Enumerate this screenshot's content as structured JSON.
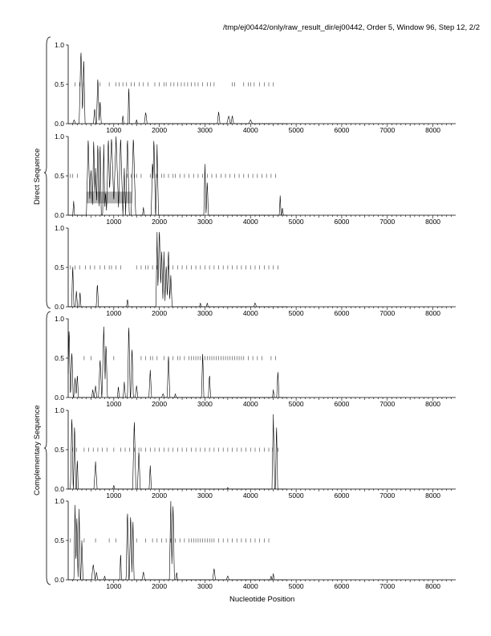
{
  "header": "/tmp/ej00442/only/raw_result_dir/ej00442, Order 5, Window 96, Step 12, 2/2",
  "group_labels": {
    "direct": "Direct Sequence",
    "complementary": "Complementary Sequence"
  },
  "chart_data": {
    "type": "line",
    "xlabel": "Nucleotide Position",
    "xlim": [
      0,
      8500
    ],
    "ylim": [
      0,
      1
    ],
    "x_ticks": [
      1000,
      2000,
      3000,
      4000,
      5000,
      6000,
      7000,
      8000
    ],
    "y_ticks": [
      "0.0",
      "0.5",
      "1.0"
    ],
    "threshold": 0.5,
    "panels": [
      {
        "group": "Direct Sequence",
        "frame": 1,
        "peaks": [
          [
            130,
            0.05,
            30
          ],
          [
            280,
            0.95,
            40
          ],
          [
            340,
            0.85,
            30
          ],
          [
            580,
            0.2,
            25
          ],
          [
            650,
            0.6,
            30
          ],
          [
            700,
            0.3,
            25
          ],
          [
            1200,
            0.1,
            20
          ],
          [
            1330,
            0.5,
            18
          ],
          [
            1500,
            0.05,
            20
          ],
          [
            1700,
            0.15,
            30
          ],
          [
            3300,
            0.15,
            30
          ],
          [
            3520,
            0.1,
            40
          ],
          [
            3600,
            0.1,
            30
          ],
          [
            4000,
            0.05,
            40
          ]
        ],
        "ticks": [
          150,
          250,
          330,
          700,
          900,
          1050,
          1120,
          1200,
          1280,
          1380,
          1450,
          1560,
          1650,
          1750,
          1900,
          2000,
          2100,
          2150,
          2250,
          2320,
          2400,
          2480,
          2550,
          2620,
          2700,
          2780,
          2850,
          2950,
          3050,
          3120,
          3200,
          3600,
          3650,
          3850,
          3950,
          4000,
          4080,
          4200,
          4300,
          4400,
          4500
        ]
      },
      {
        "group": "Direct Sequence",
        "frame": 2,
        "peaks": [
          [
            120,
            0.18,
            20
          ],
          [
            440,
            1.0,
            40
          ],
          [
            500,
            0.6,
            40
          ],
          [
            560,
            1.0,
            30
          ],
          [
            600,
            0.6,
            35
          ],
          [
            650,
            0.95,
            30
          ],
          [
            700,
            0.95,
            25
          ],
          [
            780,
            0.9,
            25
          ],
          [
            820,
            0.3,
            25
          ],
          [
            880,
            1.0,
            40
          ],
          [
            950,
            1.0,
            60
          ],
          [
            1050,
            1.0,
            60
          ],
          [
            1150,
            1.0,
            50
          ],
          [
            1230,
            0.6,
            30
          ],
          [
            1300,
            1.0,
            40
          ],
          [
            1430,
            1.0,
            50
          ],
          [
            1650,
            0.1,
            20
          ],
          [
            1850,
            0.7,
            30
          ],
          [
            1880,
            1.0,
            35
          ],
          [
            1950,
            0.9,
            30
          ],
          [
            3000,
            0.65,
            25
          ],
          [
            3050,
            0.45,
            25
          ],
          [
            4650,
            0.25,
            20
          ],
          [
            4700,
            0.1,
            20
          ]
        ],
        "ticks": [
          50,
          100,
          200,
          1300,
          1380,
          1450,
          1500,
          1600,
          1800,
          1900,
          1950,
          2050,
          2100,
          2200,
          2300,
          2350,
          2450,
          2550,
          2650,
          2750,
          2850,
          2950,
          3050,
          3150,
          3250,
          3350,
          3450,
          3550,
          3650,
          3750,
          3850,
          3950,
          4050,
          4150,
          4250,
          4350,
          4450,
          4550
        ],
        "box": [
          400,
          1400,
          0.15,
          0.3
        ]
      },
      {
        "group": "Direct Sequence",
        "frame": 3,
        "peaks": [
          [
            100,
            0.55,
            25
          ],
          [
            180,
            0.2,
            25
          ],
          [
            260,
            0.2,
            20
          ],
          [
            640,
            0.3,
            25
          ],
          [
            1300,
            0.1,
            20
          ],
          [
            1950,
            0.95,
            25
          ],
          [
            2000,
            1.0,
            40
          ],
          [
            2050,
            0.75,
            30
          ],
          [
            2100,
            0.7,
            25
          ],
          [
            2150,
            0.55,
            30
          ],
          [
            2200,
            0.75,
            30
          ],
          [
            2250,
            0.4,
            30
          ],
          [
            2900,
            0.05,
            20
          ],
          [
            3050,
            0.05,
            20
          ],
          [
            4100,
            0.05,
            30
          ]
        ],
        "ticks": [
          50,
          150,
          250,
          380,
          480,
          580,
          700,
          800,
          900,
          950,
          1050,
          1150,
          1500,
          1600,
          1700,
          1750,
          1850,
          1950,
          2200,
          2300,
          2400,
          2500,
          2600,
          2700,
          2800,
          2900,
          3000,
          3100,
          3200,
          3300,
          3400,
          3500,
          3600,
          3700,
          3800,
          3900,
          4000,
          4100,
          4200,
          4300,
          4400,
          4500,
          4600
        ]
      },
      {
        "group": "Complementary Sequence",
        "frame": 1,
        "peaks": [
          [
            20,
            0.9,
            30
          ],
          [
            80,
            0.6,
            30
          ],
          [
            150,
            0.25,
            30
          ],
          [
            200,
            0.3,
            25
          ],
          [
            540,
            0.1,
            25
          ],
          [
            600,
            0.15,
            30
          ],
          [
            700,
            0.5,
            35
          ],
          [
            780,
            0.9,
            40
          ],
          [
            830,
            0.7,
            30
          ],
          [
            1100,
            0.15,
            20
          ],
          [
            1230,
            0.2,
            25
          ],
          [
            1330,
            0.95,
            30
          ],
          [
            1400,
            0.65,
            30
          ],
          [
            1500,
            0.15,
            30
          ],
          [
            1800,
            0.35,
            30
          ],
          [
            2080,
            0.05,
            30
          ],
          [
            2200,
            0.55,
            30
          ],
          [
            2350,
            0.05,
            20
          ],
          [
            2950,
            0.6,
            25
          ],
          [
            3100,
            0.3,
            25
          ],
          [
            4500,
            0.1,
            20
          ],
          [
            4600,
            0.35,
            25
          ]
        ],
        "ticks": [
          350,
          500,
          1000,
          1600,
          1700,
          1800,
          1850,
          1950,
          2100,
          2200,
          2300,
          2400,
          2450,
          2550,
          2650,
          2700,
          2750,
          2800,
          2850,
          2900,
          2950,
          3000,
          3050,
          3100,
          3150,
          3200,
          3250,
          3300,
          3350,
          3400,
          3450,
          3500,
          3550,
          3600,
          3650,
          3700,
          3750,
          3800,
          3850,
          3950,
          4050,
          4150,
          4250,
          4450,
          4550
        ]
      },
      {
        "group": "Complementary Sequence",
        "frame": 2,
        "peaks": [
          [
            80,
            0.95,
            30
          ],
          [
            140,
            0.85,
            25
          ],
          [
            200,
            0.4,
            20
          ],
          [
            600,
            0.35,
            35
          ],
          [
            1000,
            0.05,
            20
          ],
          [
            1450,
            0.9,
            35
          ],
          [
            1550,
            0.5,
            30
          ],
          [
            1800,
            0.3,
            25
          ],
          [
            3500,
            0.02,
            20
          ],
          [
            4500,
            0.95,
            30
          ],
          [
            4570,
            0.85,
            25
          ]
        ],
        "ticks": [
          100,
          180,
          350,
          450,
          550,
          650,
          750,
          850,
          1000,
          1150,
          1250,
          1350,
          1450,
          1550,
          1600,
          1700,
          1800,
          1900,
          2000,
          2100,
          2200,
          2300,
          2400,
          2500,
          2600,
          2700,
          2800,
          2900,
          3000,
          3100,
          3200,
          3300,
          3400,
          3500,
          3600,
          3700,
          3800,
          3900,
          4000,
          4100,
          4200,
          4300,
          4400,
          4480,
          4600
        ]
      },
      {
        "group": "Complementary Sequence",
        "frame": 3,
        "peaks": [
          [
            150,
            0.95,
            25
          ],
          [
            190,
            0.85,
            25
          ],
          [
            240,
            0.9,
            25
          ],
          [
            300,
            0.5,
            25
          ],
          [
            550,
            0.2,
            40
          ],
          [
            620,
            0.1,
            30
          ],
          [
            800,
            0.05,
            20
          ],
          [
            1150,
            0.35,
            20
          ],
          [
            1300,
            0.9,
            30
          ],
          [
            1370,
            0.85,
            30
          ],
          [
            1420,
            0.8,
            25
          ],
          [
            1650,
            0.1,
            30
          ],
          [
            2250,
            1.0,
            30
          ],
          [
            2300,
            1.0,
            30
          ],
          [
            2380,
            0.1,
            20
          ],
          [
            3200,
            0.15,
            30
          ],
          [
            3500,
            0.05,
            30
          ],
          [
            4450,
            0.05,
            20
          ],
          [
            4500,
            0.08,
            20
          ]
        ],
        "ticks": [
          50,
          350,
          600,
          900,
          1050,
          1500,
          1700,
          1850,
          1950,
          2050,
          2150,
          2250,
          2350,
          2450,
          2550,
          2650,
          2700,
          2750,
          2800,
          2850,
          2900,
          2950,
          3000,
          3050,
          3100,
          3150,
          3200,
          3300,
          3400,
          3500,
          3600,
          3700,
          3800,
          3900,
          4000,
          4100,
          4200,
          4300,
          4400
        ]
      }
    ]
  }
}
